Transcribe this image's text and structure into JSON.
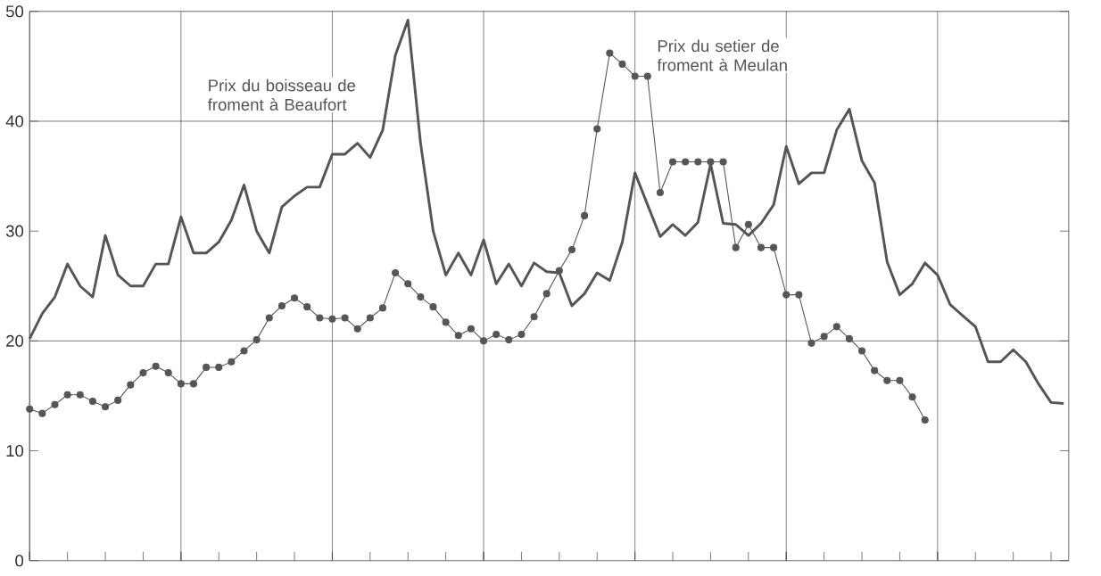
{
  "chart_data": {
    "type": "line",
    "categories": [
      null,
      null,
      null,
      null,
      null,
      null,
      null,
      null,
      null,
      null,
      null,
      null,
      null,
      null,
      null,
      null,
      null,
      null,
      null,
      null,
      null,
      null,
      null,
      null,
      null,
      null,
      null,
      null,
      null,
      null,
      null,
      null,
      null,
      null,
      null,
      null,
      null,
      null,
      null,
      null,
      null,
      null,
      null,
      null,
      null,
      null,
      null,
      null,
      null,
      null,
      null,
      null,
      null,
      null,
      null,
      null,
      null,
      null,
      null,
      null,
      null,
      null,
      null,
      null,
      null,
      null,
      null,
      null,
      null,
      null,
      null,
      null,
      null,
      null,
      null,
      null,
      null,
      null,
      null,
      null,
      null,
      null,
      null
    ],
    "series": [
      {
        "name": "Prix du boisseau de froment à Beaufort",
        "color": "#555555",
        "marker": "none",
        "values": [
          20.2,
          22.5,
          24,
          27,
          25,
          24,
          29.6,
          26,
          25,
          25,
          27,
          27,
          31.3,
          28,
          28,
          29,
          31,
          34.2,
          30,
          28,
          32.2,
          33.2,
          34,
          34,
          37,
          37,
          38,
          36.7,
          39.2,
          46,
          49.2,
          38,
          30,
          26,
          28,
          26,
          29.2,
          25.2,
          27,
          25,
          27.1,
          26.3,
          26.2,
          23.2,
          24.3,
          26.2,
          25.5,
          29,
          35.3,
          32.4,
          29.5,
          30.6,
          29.6,
          30.8,
          36.1,
          30.7,
          30.6,
          29.6,
          30.7,
          32.4,
          37.7,
          34.3,
          35.3,
          35.3,
          39.2,
          41.1,
          36.4,
          34.4,
          27.2,
          24.2,
          25.2,
          27.1,
          26,
          23.3,
          22.3,
          21.3,
          18.1,
          18.1,
          19.2,
          18.1,
          16.1,
          14.4,
          14.3
        ]
      },
      {
        "name": "Prix du setier de froment à Meulan",
        "color": "#555555",
        "marker": "circle",
        "values": [
          13.8,
          13.4,
          14.2,
          15.1,
          15.1,
          14.5,
          14,
          14.6,
          16,
          17.1,
          17.7,
          17.1,
          16.1,
          16.1,
          17.6,
          17.6,
          18.1,
          19.1,
          20.1,
          22.1,
          23.2,
          23.9,
          23.1,
          22.1,
          22,
          22.1,
          21.1,
          22.1,
          23,
          26.2,
          25.2,
          24,
          23.1,
          21.7,
          20.5,
          21.1,
          20,
          20.6,
          20.1,
          20.6,
          22.2,
          24.3,
          26.4,
          28.3,
          31.4,
          39.3,
          46.2,
          45.2,
          44.1,
          44.1,
          33.5,
          36.3,
          36.3,
          36.3,
          36.3,
          36.3,
          28.5,
          30.6,
          28.5,
          28.5,
          24.2,
          24.2,
          19.8,
          20.4,
          21.3,
          20.2,
          19.1,
          17.3,
          16.4,
          16.4,
          14.9,
          12.8,
          null,
          null,
          null,
          null,
          null,
          null,
          null,
          null,
          null,
          null,
          null
        ]
      }
    ],
    "ylim": [
      0,
      50
    ],
    "yticks": [
      0,
      10,
      20,
      30,
      40,
      50
    ],
    "tick_labels": "y",
    "grid": "x",
    "ref_lines": [
      {
        "axis": "y",
        "value": 20,
        "color": "#555555"
      },
      {
        "axis": "y",
        "value": 40,
        "color": "#555555"
      }
    ]
  }
}
